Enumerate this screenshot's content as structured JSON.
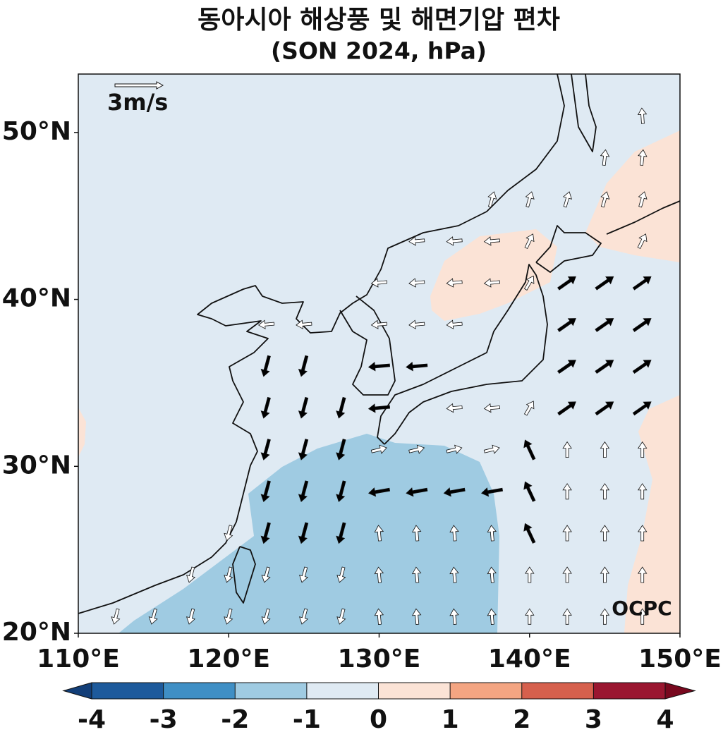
{
  "map": {
    "title": "동아시아 해상풍 및 해면기압 편차",
    "subtitle": "(SON 2024, hPa)",
    "lon_range": [
      110,
      150
    ],
    "lat_range": [
      20,
      53.5
    ],
    "lon_ticks": [
      {
        "value": 110,
        "label": "110°E"
      },
      {
        "value": 120,
        "label": "120°E"
      },
      {
        "value": 130,
        "label": "130°E"
      },
      {
        "value": 140,
        "label": "140°E"
      },
      {
        "value": 150,
        "label": "150°E"
      }
    ],
    "lat_ticks": [
      {
        "value": 20,
        "label": "20°N"
      },
      {
        "value": 30,
        "label": "30°N"
      },
      {
        "value": 40,
        "label": "40°N"
      },
      {
        "value": 50,
        "label": "50°N"
      }
    ],
    "colorbar": {
      "ticks": [
        -4,
        -3,
        -2,
        -1,
        0,
        1,
        2,
        3,
        4
      ],
      "colors": [
        "#1d5a9c",
        "#3f8fc5",
        "#9fcbe2",
        "#dfeaf3",
        "#fbe3d6",
        "#f4a582",
        "#d6604d",
        "#9a1630"
      ],
      "under_color": "#123e78",
      "over_color": "#78081e"
    },
    "reference_vector": {
      "label": "3m/s"
    },
    "logo": "OCPC"
  }
}
